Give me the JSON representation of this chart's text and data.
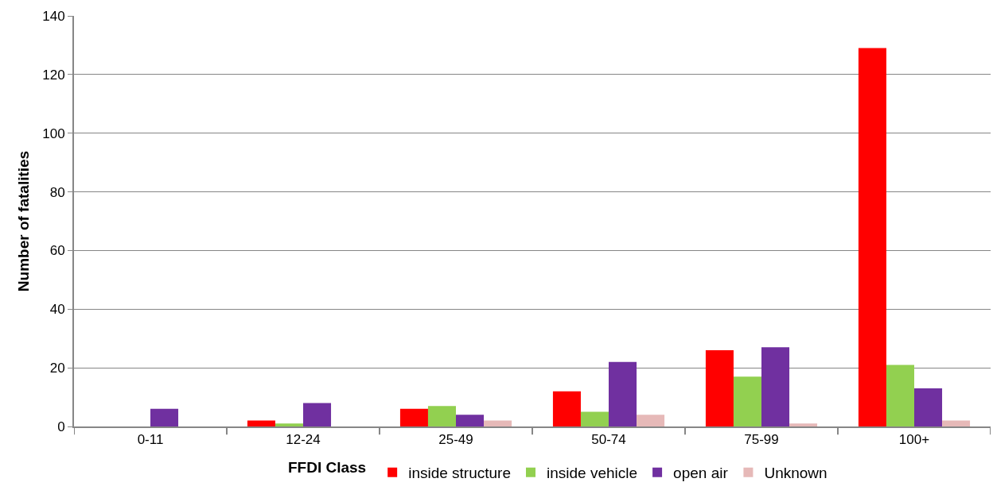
{
  "chart_data": {
    "type": "bar",
    "xlabel": "FFDI Class",
    "ylabel": "Number of fatalities",
    "categories": [
      "0-11",
      "12-24",
      "25-49",
      "50-74",
      "75-99",
      "100+"
    ],
    "series": [
      {
        "name": "inside structure",
        "color": "#ff0000",
        "values": [
          0,
          2,
          6,
          12,
          26,
          129
        ]
      },
      {
        "name": "inside vehicle",
        "color": "#92d050",
        "values": [
          0,
          1,
          7,
          5,
          17,
          21
        ]
      },
      {
        "name": "open air",
        "color": "#7030a0",
        "values": [
          6,
          8,
          4,
          22,
          27,
          13
        ]
      },
      {
        "name": "Unknown",
        "color": "#e6b9b8",
        "values": [
          0,
          0,
          2,
          4,
          1,
          2
        ]
      }
    ],
    "ylim": [
      0,
      140
    ],
    "yticks": [
      0,
      20,
      40,
      60,
      80,
      100,
      120,
      140
    ],
    "grid": "y",
    "legend": "bottom"
  }
}
